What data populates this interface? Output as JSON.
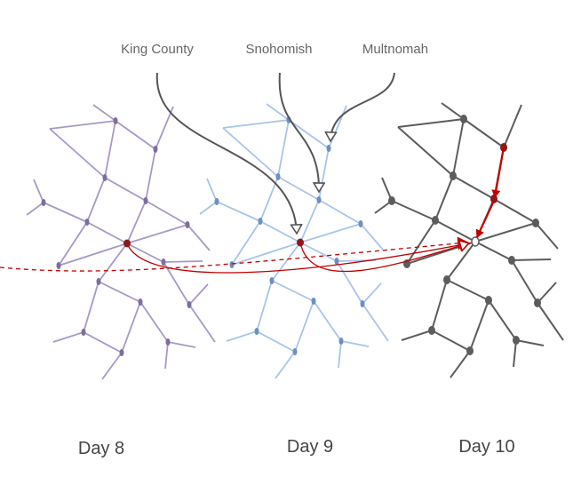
{
  "annotations": {
    "king_county": "King County",
    "snohomish": "Snohomish",
    "multnomah": "Multnomah"
  },
  "days": [
    {
      "label": "Day 8",
      "color": "#a898c8"
    },
    {
      "label": "Day 9",
      "color": "#a8c4ec"
    },
    {
      "label": "Day 10",
      "color": "#5c5c5c"
    }
  ],
  "colors": {
    "highlight_node": "#8b1a1a",
    "flow_arrow": "#c00000",
    "annotation_arrow": "#555555"
  },
  "icons": {
    "arrowhead": "open-triangle-arrowhead"
  }
}
